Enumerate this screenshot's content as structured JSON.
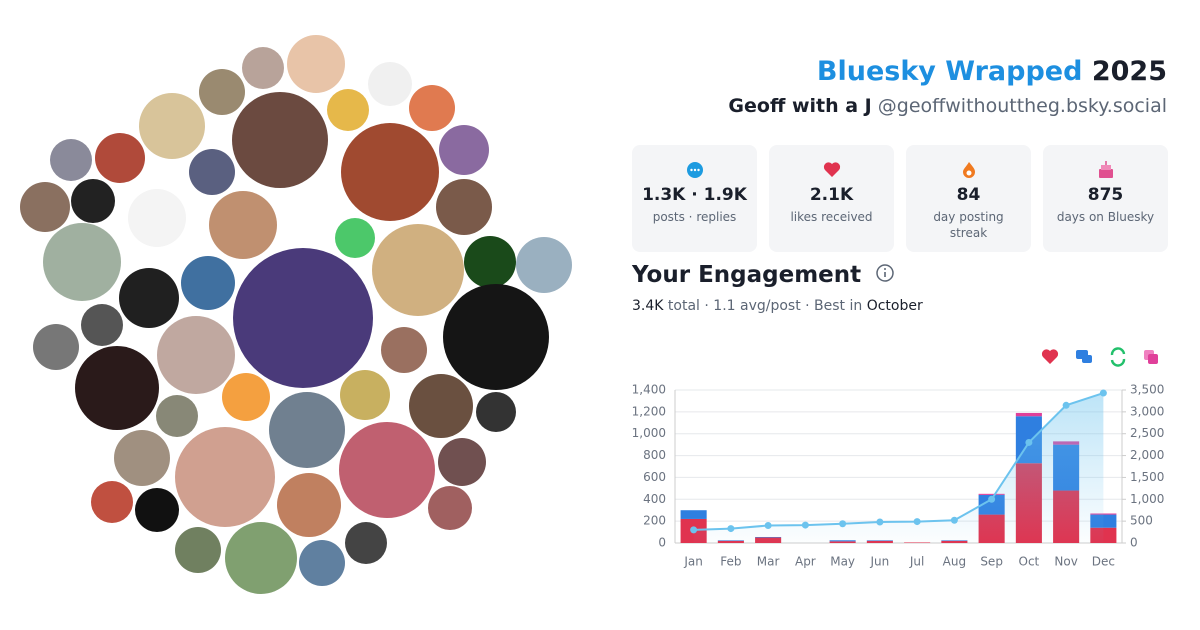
{
  "header": {
    "title": "Bluesky Wrapped",
    "year": "2025",
    "name": "Geoff with a J",
    "handle": "@geoffwithouttheg.bsky.social"
  },
  "stats": [
    {
      "value": "1.3K · 1.9K",
      "label": "posts · replies"
    },
    {
      "value": "2.1K",
      "label": "likes received"
    },
    {
      "value": "84",
      "label": "day posting streak"
    },
    {
      "value": "875",
      "label": "days on Bluesky"
    }
  ],
  "engagement": {
    "title": "Your Engagement",
    "total": "3.4K",
    "total_label": "total ·",
    "avg": "1.1 avg/post · Best in",
    "best": "October"
  },
  "chart_data": {
    "type": "bar",
    "stacked": true,
    "categories": [
      "Jan",
      "Feb",
      "Mar",
      "Apr",
      "May",
      "Jun",
      "Jul",
      "Aug",
      "Sep",
      "Oct",
      "Nov",
      "Dec"
    ],
    "series": [
      {
        "color": "#e0334f",
        "values": [
          220,
          20,
          50,
          0,
          15,
          20,
          5,
          20,
          260,
          730,
          480,
          140
        ]
      },
      {
        "color": "#2f7fe0",
        "values": [
          80,
          5,
          5,
          0,
          10,
          5,
          0,
          5,
          180,
          430,
          420,
          120
        ]
      },
      {
        "color": "#e0409a",
        "values": [
          0,
          0,
          0,
          0,
          0,
          0,
          0,
          0,
          10,
          30,
          30,
          10
        ]
      },
      {
        "type": "line",
        "axis": "y2",
        "color": "#6cc3ee",
        "values": [
          300,
          330,
          400,
          410,
          440,
          480,
          490,
          520,
          1000,
          2300,
          3150,
          3430
        ]
      }
    ],
    "ylim": [
      0,
      1400
    ],
    "yticks": [
      0,
      200,
      400,
      600,
      800,
      {
        "value": 1000,
        "label": "1,000"
      },
      {
        "value": 1200,
        "label": "1,200"
      },
      {
        "value": 1400,
        "label": "1,400"
      }
    ],
    "y2lim": [
      0,
      3500
    ],
    "y2ticks": [
      0,
      500,
      {
        "value": 1000,
        "label": "1,000"
      },
      {
        "value": 1500,
        "label": "1,500"
      },
      {
        "value": 2000,
        "label": "2,000"
      },
      {
        "value": 2500,
        "label": "2,500"
      },
      {
        "value": 3000,
        "label": "3,000"
      },
      {
        "value": 3500,
        "label": "3,500"
      }
    ],
    "grid": true
  }
}
